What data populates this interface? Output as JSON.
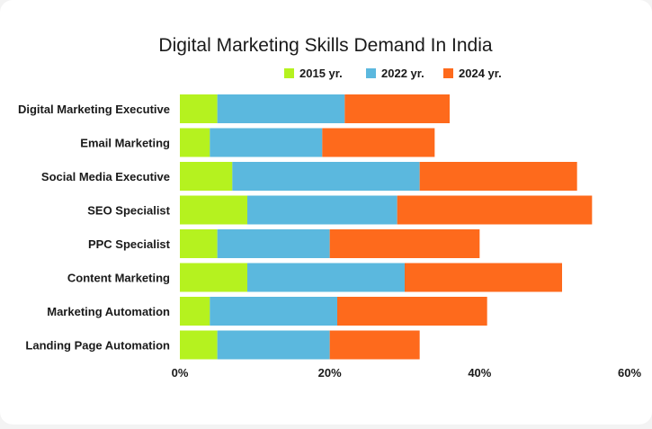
{
  "chart_data": {
    "type": "bar",
    "orientation": "horizontal",
    "stacked": true,
    "title": "Digital Marketing Skills Demand In India",
    "categories": [
      "Digital Marketing Executive",
      "Email Marketing",
      "Social Media Executive",
      "SEO Specialist",
      "PPC Specialist",
      "Content Marketing",
      "Marketing Automation",
      "Landing Page Automation"
    ],
    "series": [
      {
        "name": "2015 yr.",
        "color": "#b5f21f",
        "values": [
          5,
          4,
          7,
          9,
          5,
          9,
          4,
          5
        ]
      },
      {
        "name": "2022 yr.",
        "color": "#5bb8de",
        "values": [
          17,
          15,
          25,
          20,
          15,
          21,
          17,
          15
        ]
      },
      {
        "name": "2024 yr.",
        "color": "#fe6a1c",
        "values": [
          14,
          15,
          21,
          26,
          20,
          21,
          20,
          12
        ]
      }
    ],
    "xlim": [
      0,
      60
    ],
    "xticks": [
      "0%",
      "20%",
      "40%",
      "60%"
    ],
    "legend": "top-right",
    "grid": false
  }
}
